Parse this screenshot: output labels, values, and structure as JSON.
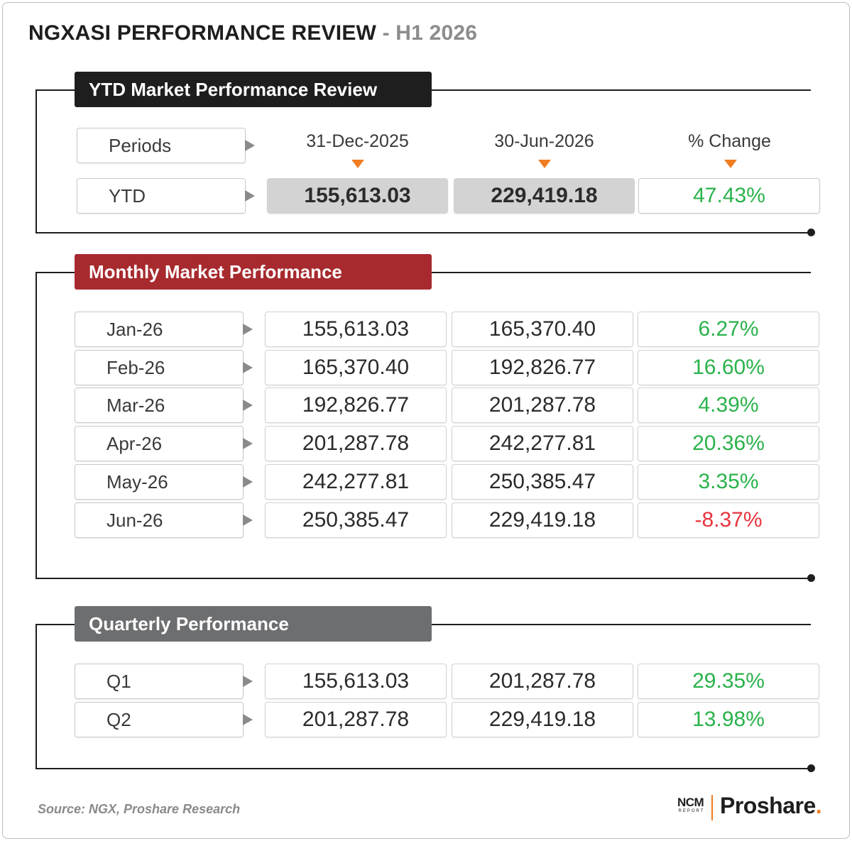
{
  "title": {
    "main": "NGXASI PERFORMANCE REVIEW",
    "sub": " - H1 2026"
  },
  "colors": {
    "header_black": "#1e1e1e",
    "header_red": "#a72a2e",
    "header_gray": "#6d6e70",
    "positive": "#2ab24b",
    "negative": "#e8343d",
    "accent": "#f07d22"
  },
  "chart_data": {
    "type": "table",
    "title": "NGXASI PERFORMANCE REVIEW - H1 2026",
    "ytd": {
      "header": "YTD Market Performance Review",
      "periods_label": "Periods",
      "columns": [
        "31-Dec-2025",
        "30-Jun-2026",
        "% Change"
      ],
      "row": {
        "label": "YTD",
        "start": "155,613.03",
        "end": "229,419.18",
        "change": "47.43%"
      }
    },
    "monthly": {
      "header": "Monthly Market Performance",
      "rows": [
        {
          "label": "Jan-26",
          "start": "155,613.03",
          "end": "165,370.40",
          "change": "6.27%"
        },
        {
          "label": "Feb-26",
          "start": "165,370.40",
          "end": "192,826.77",
          "change": "16.60%"
        },
        {
          "label": "Mar-26",
          "start": "192,826.77",
          "end": "201,287.78",
          "change": "4.39%"
        },
        {
          "label": "Apr-26",
          "start": "201,287.78",
          "end": "242,277.81",
          "change": "20.36%"
        },
        {
          "label": "May-26",
          "start": "242,277.81",
          "end": "250,385.47",
          "change": "3.35%"
        },
        {
          "label": "Jun-26",
          "start": "250,385.47",
          "end": "229,419.18",
          "change": "-8.37%"
        }
      ]
    },
    "quarterly": {
      "header": "Quarterly Performance",
      "rows": [
        {
          "label": "Q1",
          "start": "155,613.03",
          "end": "201,287.78",
          "change": "29.35%"
        },
        {
          "label": "Q2",
          "start": "201,287.78",
          "end": "229,419.18",
          "change": "13.98%"
        }
      ]
    }
  },
  "footer": {
    "source": "Source: NGX, Proshare Research",
    "ncm_logo": "NCM",
    "ncm_sub": "REPORT",
    "brand": "Proshare",
    "brand_dot": "."
  }
}
